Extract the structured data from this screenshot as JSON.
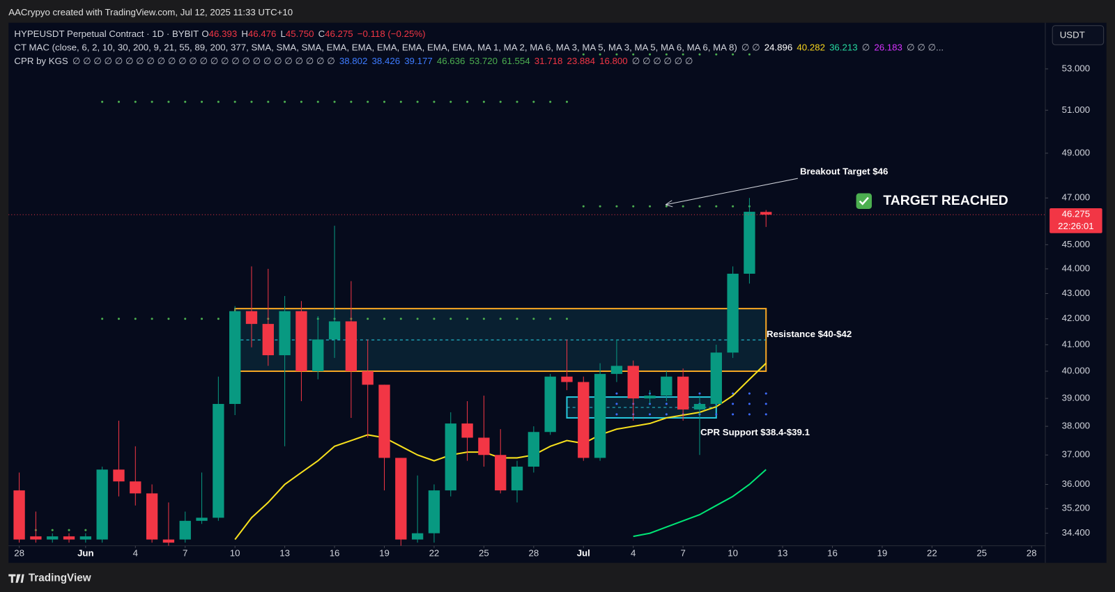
{
  "header": "AACrypyo created with TradingView.com, Jul 12, 2025 11:33 UTC+10",
  "footer": "TradingView",
  "currency_button": "USDT",
  "chart_data": {
    "type": "candlestick",
    "legend": {
      "symbol": "HYPEUSDT Perpetual Contract · 1D · BYBIT",
      "ohlc": [
        {
          "prefix": "O",
          "value": 46.393
        },
        {
          "prefix": "H",
          "value": 46.476
        },
        {
          "prefix": "L",
          "value": 45.75,
          "label": "45.750"
        },
        {
          "prefix": "C",
          "value": 46.275
        }
      ],
      "change": "−0.118 (−0.25%)",
      "color": "#f23645"
    },
    "indicators": [
      {
        "name": "CT MAC (close, 6, 2, 10, 30, 200, 9, 21, 55, 89, 200, 377, SMA, SMA, SMA, EMA, EMA, EMA, EMA, EMA, EMA, MA 1, MA 2, MA 6, MA 3, MA 5, MA 3, MA 5, MA 6, MA 6, MA 8)",
        "items": [
          "∅ ∅",
          {
            "value": 24.896,
            "color": "#ffffff"
          },
          {
            "value": 40.282,
            "color": "#f7d51d"
          },
          {
            "value": 36.213,
            "color": "#26d9a0"
          },
          "∅",
          {
            "value": 26.183,
            "color": "#d633ff"
          },
          "∅ ∅ ∅..."
        ]
      },
      {
        "name": "CPR by KGS",
        "items": [
          "∅ ∅ ∅ ∅ ∅ ∅ ∅ ∅ ∅ ∅ ∅ ∅ ∅ ∅ ∅ ∅ ∅ ∅ ∅ ∅ ∅ ∅ ∅ ∅ ∅",
          {
            "value": 38.802,
            "color": "#3d7bff"
          },
          {
            "value": 38.426,
            "color": "#3d7bff"
          },
          {
            "value": 39.177,
            "color": "#3d7bff"
          },
          {
            "value": 46.636,
            "color": "#4caf50"
          },
          {
            "value": 53.72,
            "label": "53.720",
            "color": "#4caf50"
          },
          {
            "value": 61.554,
            "color": "#4caf50"
          },
          {
            "value": 31.718,
            "color": "#f23645"
          },
          {
            "value": 23.884,
            "color": "#f23645"
          },
          {
            "value": 16.8,
            "label": "16.800",
            "color": "#f23645"
          },
          "∅ ∅ ∅ ∅ ∅ ∅"
        ]
      }
    ],
    "x": [
      "2025-05-28",
      "2025-05-29",
      "2025-05-30",
      "2025-05-31",
      "2025-06-01",
      "2025-06-02",
      "2025-06-03",
      "2025-06-04",
      "2025-06-05",
      "2025-06-06",
      "2025-06-07",
      "2025-06-08",
      "2025-06-09",
      "2025-06-10",
      "2025-06-11",
      "2025-06-12",
      "2025-06-13",
      "2025-06-14",
      "2025-06-15",
      "2025-06-16",
      "2025-06-17",
      "2025-06-18",
      "2025-06-19",
      "2025-06-20",
      "2025-06-21",
      "2025-06-22",
      "2025-06-23",
      "2025-06-24",
      "2025-06-25",
      "2025-06-26",
      "2025-06-27",
      "2025-06-28",
      "2025-06-29",
      "2025-06-30",
      "2025-07-01",
      "2025-07-02",
      "2025-07-03",
      "2025-07-04",
      "2025-07-05",
      "2025-07-06",
      "2025-07-07",
      "2025-07-08",
      "2025-07-09",
      "2025-07-10",
      "2025-07-11",
      "2025-07-12"
    ],
    "open": [
      35.8,
      34.3,
      34.2,
      34.3,
      34.2,
      34.2,
      36.5,
      36.1,
      35.7,
      34.2,
      34.2,
      34.8,
      34.9,
      38.8,
      42.3,
      41.8,
      40.6,
      42.3,
      40.0,
      41.2,
      41.9,
      40.0,
      39.5,
      36.9,
      34.2,
      34.4,
      35.8,
      38.1,
      37.6,
      37.0,
      35.8,
      36.6,
      37.8,
      39.8,
      39.6,
      36.9,
      39.9,
      40.2,
      39.0,
      39.1,
      39.8,
      38.6,
      38.8,
      40.7,
      43.8,
      46.393
    ],
    "high": [
      36.4,
      35.1,
      34.4,
      34.4,
      34.4,
      36.6,
      38.2,
      37.3,
      36.0,
      35.4,
      35.1,
      36.4,
      39.8,
      42.5,
      44.1,
      44.0,
      42.9,
      42.7,
      42.1,
      45.8,
      43.5,
      41.2,
      39.5,
      36.9,
      36.3,
      36.0,
      38.5,
      38.9,
      39.1,
      37.9,
      36.8,
      38.0,
      39.9,
      41.2,
      39.8,
      40.3,
      41.2,
      40.4,
      39.3,
      40.0,
      40.1,
      39.1,
      41.0,
      44.1,
      47.0,
      46.476
    ],
    "low": [
      34.1,
      34.1,
      34.1,
      34.1,
      34.1,
      34.1,
      35.6,
      35.3,
      34.1,
      34.0,
      34.1,
      34.7,
      34.8,
      38.4,
      40.9,
      40.2,
      37.3,
      38.9,
      39.7,
      40.5,
      38.3,
      37.6,
      35.8,
      34.0,
      34.1,
      34.1,
      35.6,
      36.8,
      36.6,
      35.7,
      35.4,
      36.4,
      37.7,
      39.3,
      36.8,
      36.8,
      39.6,
      38.2,
      38.8,
      38.9,
      38.2,
      37.0,
      38.7,
      40.5,
      43.4,
      45.75
    ],
    "close": [
      34.2,
      34.2,
      34.3,
      34.2,
      34.3,
      36.5,
      36.1,
      35.7,
      34.2,
      34.1,
      34.8,
      34.9,
      38.8,
      42.3,
      41.8,
      40.6,
      42.3,
      40.0,
      41.2,
      41.9,
      40.0,
      39.5,
      36.9,
      34.2,
      34.4,
      35.8,
      38.1,
      37.6,
      37.0,
      35.8,
      36.6,
      37.8,
      39.8,
      39.6,
      36.9,
      39.9,
      40.2,
      39.0,
      39.1,
      39.8,
      38.6,
      38.8,
      40.7,
      43.8,
      46.4,
      46.275
    ],
    "up_color": "#089981",
    "down_color": "#f23645",
    "overlays": [
      {
        "color": "#f7e01d",
        "values": [
          null,
          null,
          null,
          null,
          null,
          null,
          null,
          null,
          null,
          null,
          null,
          null,
          null,
          34.2,
          34.9,
          35.4,
          36.0,
          36.4,
          36.8,
          37.3,
          37.5,
          37.7,
          37.6,
          37.3,
          37.0,
          36.8,
          37.0,
          37.1,
          37.1,
          36.9,
          36.9,
          37.0,
          37.3,
          37.5,
          37.4,
          37.7,
          37.9,
          38.0,
          38.1,
          38.3,
          38.4,
          38.5,
          38.7,
          39.1,
          39.7,
          40.3
        ]
      },
      {
        "color": "#00e676",
        "values": [
          null,
          null,
          null,
          null,
          null,
          null,
          null,
          null,
          null,
          null,
          null,
          null,
          null,
          null,
          null,
          null,
          null,
          null,
          null,
          null,
          null,
          null,
          null,
          null,
          null,
          null,
          null,
          null,
          null,
          null,
          null,
          null,
          null,
          null,
          null,
          null,
          null,
          34.3,
          34.4,
          34.6,
          34.8,
          35.0,
          35.3,
          35.6,
          36.0,
          36.5
        ]
      }
    ],
    "levels": [
      {
        "value": 34.5,
        "from": "2025-05-28",
        "to": "2025-06-01",
        "color": "#4caf50"
      },
      {
        "value": 51.4,
        "from": "2025-06-02",
        "to": "2025-06-30",
        "color": "#4caf50"
      },
      {
        "value": 42.0,
        "from": "2025-06-02",
        "to": "2025-06-30",
        "color": "#4caf50"
      },
      {
        "value": 53.72,
        "from": "2025-07-01",
        "to": "2025-07-11",
        "color": "#4caf50"
      },
      {
        "value": 46.636,
        "from": "2025-07-01",
        "to": "2025-07-11",
        "color": "#4caf50"
      },
      {
        "value": 39.177,
        "from": "2025-07-01",
        "to": "2025-07-12",
        "color": "#3d6bff"
      },
      {
        "value": 38.802,
        "from": "2025-07-01",
        "to": "2025-07-12",
        "color": "#3d6bff"
      },
      {
        "value": 38.426,
        "from": "2025-07-01",
        "to": "2025-07-12",
        "color": "#3d6bff"
      }
    ],
    "zones": [
      {
        "low": 40.0,
        "high": 42.4,
        "from": "2025-06-10",
        "to": "2025-07-12",
        "color": "#f5a623",
        "fill": "#0c2a3a"
      },
      {
        "low": 38.3,
        "high": 39.05,
        "from": "2025-06-30",
        "to": "2025-07-09",
        "color": "#26c6da",
        "fill": "#0c2a3a"
      }
    ],
    "annotations": {
      "breakout": "Breakout Target $46",
      "reached": "TARGET REACHED",
      "resistance": "Resistance $40-$42",
      "support": "CPR Support $38.4-$39.1"
    },
    "price_tag": {
      "value": 46.275,
      "countdown": "22:26:01",
      "color": "#f23645"
    },
    "log_scale": true,
    "ylim": [
      34.0,
      55.4
    ],
    "yticks": [
      {
        "value": 34.4,
        "label": "34.400"
      },
      {
        "value": 35.2,
        "label": "35.200"
      },
      {
        "value": 36,
        "label": "36.000"
      },
      {
        "value": 37,
        "label": "37.000"
      },
      {
        "value": 38,
        "label": "38.000"
      },
      {
        "value": 39,
        "label": "39.000"
      },
      {
        "value": 40,
        "label": "40.000"
      },
      {
        "value": 41,
        "label": "41.000"
      },
      {
        "value": 42,
        "label": "42.000"
      },
      {
        "value": 43,
        "label": "43.000"
      },
      {
        "value": 44,
        "label": "44.000"
      },
      {
        "value": 45,
        "label": "45.000"
      },
      {
        "value": 47,
        "label": "47.000"
      },
      {
        "value": 49,
        "label": "49.000"
      },
      {
        "value": 51,
        "label": "51.000"
      },
      {
        "value": 53,
        "label": "53.000"
      }
    ],
    "xlim": [
      "2025-05-27",
      "2025-07-29"
    ],
    "xticks": [
      {
        "value": "2025-05-28",
        "label": "28"
      },
      {
        "value": "2025-06-01",
        "label": "Jun"
      },
      {
        "value": "2025-06-04",
        "label": "4"
      },
      {
        "value": "2025-06-07",
        "label": "7"
      },
      {
        "value": "2025-06-10",
        "label": "10"
      },
      {
        "value": "2025-06-13",
        "label": "13"
      },
      {
        "value": "2025-06-16",
        "label": "16"
      },
      {
        "value": "2025-06-19",
        "label": "19"
      },
      {
        "value": "2025-06-22",
        "label": "22"
      },
      {
        "value": "2025-06-25",
        "label": "25"
      },
      {
        "value": "2025-06-28",
        "label": "28"
      },
      {
        "value": "2025-07-01",
        "label": "Jul"
      },
      {
        "value": "2025-07-04",
        "label": "4"
      },
      {
        "value": "2025-07-07",
        "label": "7"
      },
      {
        "value": "2025-07-10",
        "label": "10"
      },
      {
        "value": "2025-07-13",
        "label": "13"
      },
      {
        "value": "2025-07-16",
        "label": "16"
      },
      {
        "value": "2025-07-19",
        "label": "19"
      },
      {
        "value": "2025-07-22",
        "label": "22"
      },
      {
        "value": "2025-07-25",
        "label": "25"
      },
      {
        "value": "2025-07-28",
        "label": "28"
      }
    ],
    "grid": false
  }
}
